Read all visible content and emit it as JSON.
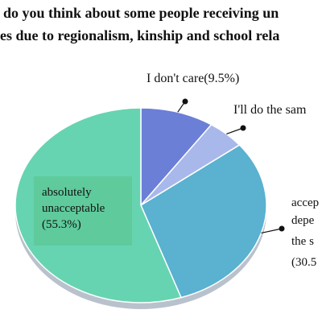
{
  "chart_data": {
    "type": "pie",
    "title_lines": [
      "do you think about some people receiving un",
      "es due to regionalism, kinship and school rela"
    ],
    "slices": [
      {
        "label": "I don't care(9.5%)",
        "value": 9.5,
        "color": "#6b7fd7"
      },
      {
        "label": "I'll do the sam",
        "value": 4.9,
        "color": "#a9b8ea"
      },
      {
        "label": "accep depe the s (30.5",
        "value": 30.5,
        "color": "#5ab1d0"
      },
      {
        "label": "absolutely unacceptable (55.3%)",
        "value": 55.3,
        "color": "#66d4b0"
      }
    ],
    "labels": {
      "i_dont_care": "I don't care(9.5%)",
      "ill_do_same": "I'll do the sam",
      "acceptable": [
        "accep",
        "depe",
        "the s",
        "(30.5"
      ],
      "unacceptable": [
        "absolutely",
        "unacceptable",
        "(55.3%)"
      ]
    },
    "legend": "none"
  }
}
